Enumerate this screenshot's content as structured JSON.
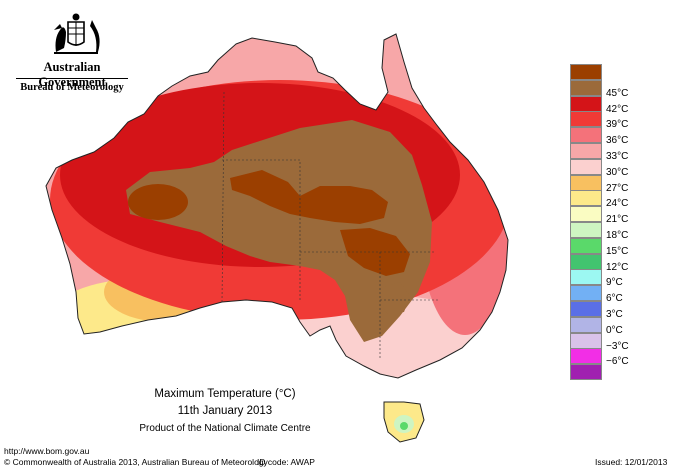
{
  "header": {
    "government": "Australian Government",
    "bureau": "Bureau of Meteorology"
  },
  "map": {
    "title": "Maximum Temperature (°C)",
    "date": "11th January 2013",
    "product": "Product of the National Climate Centre"
  },
  "legend": {
    "items": [
      {
        "label": "",
        "color": "#9b3f00"
      },
      {
        "label": "45°C",
        "color": "#9b6a3a"
      },
      {
        "label": "42°C",
        "color": "#d41418"
      },
      {
        "label": "39°C",
        "color": "#f03a36"
      },
      {
        "label": "36°C",
        "color": "#f4727a"
      },
      {
        "label": "33°C",
        "color": "#f7a7a8"
      },
      {
        "label": "30°C",
        "color": "#fbd0cf"
      },
      {
        "label": "27°C",
        "color": "#f8c060"
      },
      {
        "label": "24°C",
        "color": "#fde98a"
      },
      {
        "label": "21°C",
        "color": "#fafcc2"
      },
      {
        "label": "18°C",
        "color": "#cef5c2"
      },
      {
        "label": "15°C",
        "color": "#5ad96a"
      },
      {
        "label": "12°C",
        "color": "#42c46f"
      },
      {
        "label": "9°C",
        "color": "#9cf8f2"
      },
      {
        "label": "6°C",
        "color": "#72b0f4"
      },
      {
        "label": "3°C",
        "color": "#5a6fe6"
      },
      {
        "label": "0°C",
        "color": "#b1b4e6"
      },
      {
        "label": "−3°C",
        "color": "#d9c2e9"
      },
      {
        "label": "−6°C",
        "color": "#f22ee6"
      },
      {
        "label": "",
        "color": "#a020b0"
      }
    ]
  },
  "footer": {
    "url": "http://www.bom.gov.au",
    "copyright": "© Commonwealth of Australia 2013, Australian Bureau of Meteorology",
    "id_code": "ID code: AWAP",
    "issued": "Issued: 12/01/2013"
  },
  "icons": [
    "coat-of-arms-icon"
  ]
}
